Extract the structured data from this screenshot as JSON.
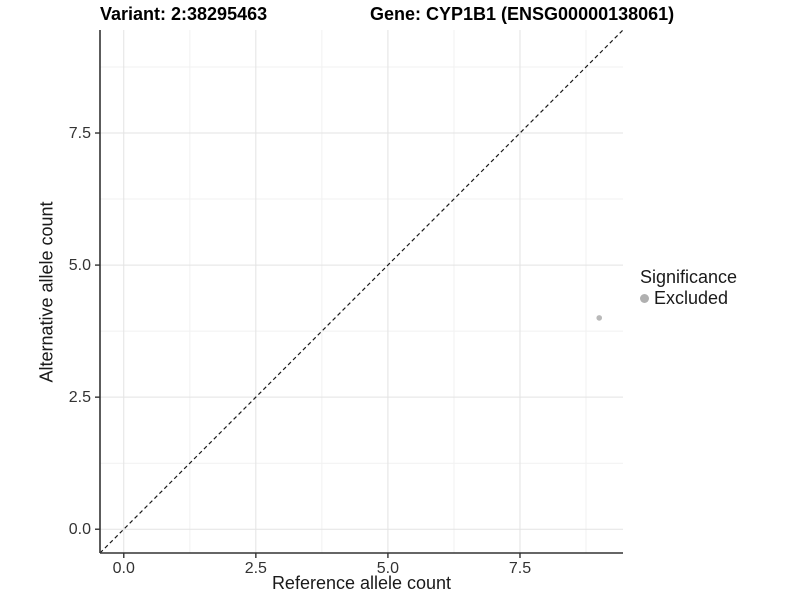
{
  "header": {
    "variant_title": "Variant: 2:38295463",
    "gene_title": "Gene: CYP1B1 (ENSG00000138061)"
  },
  "chart_data": {
    "type": "scatter",
    "title": "Variant: 2:38295463   Gene: CYP1B1 (ENSG00000138061)",
    "xlabel": "Reference allele count",
    "ylabel": "Alternative allele count",
    "xlim": [
      -0.45,
      9.45
    ],
    "ylim": [
      -0.45,
      9.45
    ],
    "x_ticks": [
      0.0,
      2.5,
      5.0,
      7.5
    ],
    "x_tick_labels": [
      "0.0",
      "2.5",
      "5.0",
      "7.5"
    ],
    "y_ticks": [
      0.0,
      2.5,
      5.0,
      7.5
    ],
    "y_tick_labels": [
      "0.0",
      "2.5",
      "5.0",
      "7.5"
    ],
    "minor_x_ticks": [
      1.25,
      3.75,
      6.25,
      8.75
    ],
    "minor_y_ticks": [
      1.25,
      3.75,
      6.25,
      8.75
    ],
    "grid": true,
    "series": [
      {
        "name": "Excluded",
        "color": "#b9b9b9",
        "points": [
          {
            "x": 9,
            "y": 4
          }
        ]
      }
    ],
    "abline": {
      "slope": 1,
      "intercept": 0,
      "linestyle": "dashed",
      "color": "#1a1a1a"
    },
    "legend": {
      "position": "right",
      "title": "Significance",
      "items": [
        {
          "label": "Excluded",
          "color": "#b0b0b0"
        }
      ]
    },
    "colors": {
      "axis_line": "#333333",
      "tick_mark": "#333333",
      "tick_label": "#333333",
      "grid_major": "#e3e3e3",
      "grid_minor": "#f1f1f1",
      "background": "#ffffff"
    }
  }
}
